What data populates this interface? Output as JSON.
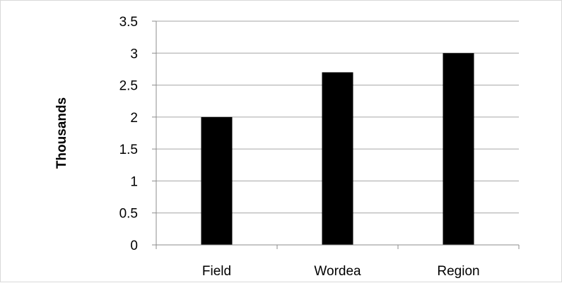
{
  "chart_data": {
    "type": "bar",
    "categories": [
      "Field",
      "Wordea",
      "Region"
    ],
    "values": [
      2,
      2.7,
      3
    ],
    "title": "",
    "xlabel": "",
    "ylabel": "Thousands",
    "ylim": [
      0,
      3.5
    ],
    "yticks": [
      "0",
      "0.5",
      "1",
      "1.5",
      "2",
      "2.5",
      "3",
      "3.5"
    ],
    "grid": true,
    "legend": "none",
    "bar_color": "#000000",
    "grid_color": "#a6a6a6"
  }
}
